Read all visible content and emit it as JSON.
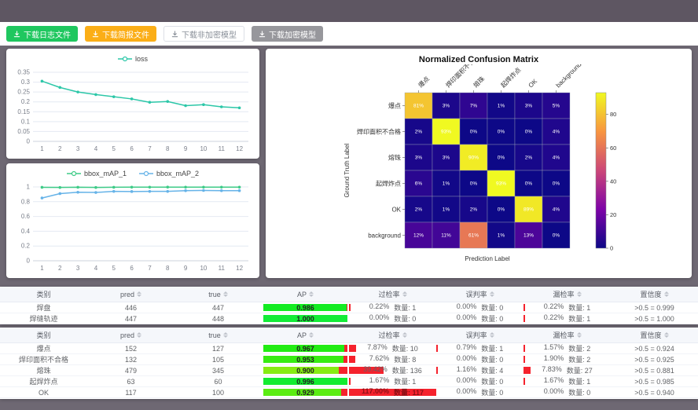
{
  "toolbar": {
    "buttons": [
      {
        "label": "下载日志文件",
        "style": "green",
        "icon": "download-icon"
      },
      {
        "label": "下载简报文件",
        "style": "amber",
        "icon": "download-icon"
      },
      {
        "label": "下载非加密模型",
        "style": "plain",
        "icon": "download-icon"
      },
      {
        "label": "下载加密模型",
        "style": "gray",
        "icon": "download-icon"
      }
    ]
  },
  "colors": {
    "bar_red": "#f5222d",
    "header_bg": "#f5f7fb",
    "page_bg": "#6e6873"
  },
  "chart_data": [
    {
      "id": "loss",
      "type": "line",
      "title": "",
      "legend_position": "top",
      "x": [
        1,
        2,
        3,
        4,
        5,
        6,
        7,
        8,
        9,
        10,
        11,
        12
      ],
      "ylim": [
        0,
        0.35
      ],
      "yticks": [
        0,
        0.05,
        0.1,
        0.15,
        0.2,
        0.25,
        0.3,
        0.35
      ],
      "series": [
        {
          "name": "loss",
          "color": "#2cc7a8",
          "values": [
            0.305,
            0.273,
            0.25,
            0.237,
            0.226,
            0.215,
            0.198,
            0.202,
            0.181,
            0.186,
            0.175,
            0.17
          ]
        }
      ]
    },
    {
      "id": "bbox_map",
      "type": "line",
      "title": "",
      "legend_position": "top",
      "x": [
        1,
        2,
        3,
        4,
        5,
        6,
        7,
        8,
        9,
        10,
        11,
        12
      ],
      "ylim": [
        0,
        1
      ],
      "yticks": [
        0,
        0.2,
        0.4,
        0.6,
        0.8,
        1
      ],
      "series": [
        {
          "name": "bbox_mAP_1",
          "color": "#3ecb87",
          "values": [
            0.995,
            0.993,
            0.996,
            0.993,
            0.996,
            0.997,
            0.997,
            0.998,
            0.997,
            0.997,
            0.997,
            0.997
          ]
        },
        {
          "name": "bbox_mAP_2",
          "color": "#66b3e8",
          "values": [
            0.85,
            0.91,
            0.928,
            0.925,
            0.94,
            0.938,
            0.94,
            0.94,
            0.95,
            0.952,
            0.95,
            0.95
          ]
        }
      ]
    },
    {
      "id": "confusion_matrix",
      "type": "heatmap",
      "title": "Normalized Confusion Matrix",
      "xlabel": "Prediction Label",
      "ylabel": "Ground Truth Label",
      "x_labels": [
        "爆点",
        "焊印面积不合格",
        "熔珠",
        "起焊炸点",
        "OK",
        "background"
      ],
      "y_labels": [
        "爆点",
        "焊印面积不合格",
        "熔珠",
        "起焊炸点",
        "OK",
        "background"
      ],
      "unit": "%",
      "values": [
        [
          81,
          3,
          7,
          1,
          3,
          5
        ],
        [
          2,
          93,
          0,
          0,
          0,
          4
        ],
        [
          3,
          3,
          90,
          0,
          2,
          4
        ],
        [
          6,
          1,
          0,
          93,
          0,
          0
        ],
        [
          2,
          1,
          2,
          0,
          89,
          4
        ],
        [
          12,
          11,
          61,
          1,
          13,
          0
        ]
      ],
      "vmin": 0,
      "vmax": 93,
      "colormap": "plasma",
      "colorbar_ticks": [
        0,
        20,
        40,
        60,
        80
      ]
    }
  ],
  "tables": [
    {
      "name": "seam-summary",
      "headers": [
        "类别",
        "pred",
        "true",
        "AP",
        "过检率",
        "误判率",
        "漏检率",
        "置信度"
      ],
      "rows": [
        {
          "category": "焊盘",
          "pred": "446",
          "true": "447",
          "ap": 0.986,
          "ap_text": "0.986",
          "overkill": {
            "pct": "0.22%",
            "count": "数量: 1",
            "value": 0.22
          },
          "misjudge": {
            "pct": "0.00%",
            "count": "数量: 0",
            "value": 0
          },
          "miss": {
            "pct": "0.22%",
            "count": "数量: 1",
            "value": 0.22
          },
          "confidence": ">0.5 = 0.999"
        },
        {
          "category": "焊缝轨迹",
          "pred": "447",
          "true": "448",
          "ap": 1.0,
          "ap_text": "1.000",
          "overkill": {
            "pct": "0.00%",
            "count": "数量: 0",
            "value": 0
          },
          "misjudge": {
            "pct": "0.00%",
            "count": "数量: 0",
            "value": 0
          },
          "miss": {
            "pct": "0.22%",
            "count": "数量: 1",
            "value": 0.22
          },
          "confidence": ">0.5 = 1.000"
        }
      ]
    },
    {
      "name": "defect-summary",
      "headers": [
        "类别",
        "pred",
        "true",
        "AP",
        "过检率",
        "误判率",
        "漏检率",
        "置信度"
      ],
      "rows": [
        {
          "category": "爆点",
          "pred": "152",
          "true": "127",
          "ap": 0.967,
          "ap_text": "0.967",
          "overkill": {
            "pct": "7.87%",
            "count": "数量: 10",
            "value": 7.87
          },
          "misjudge": {
            "pct": "0.79%",
            "count": "数量: 1",
            "value": 0.79
          },
          "miss": {
            "pct": "1.57%",
            "count": "数量: 2",
            "value": 1.57
          },
          "confidence": ">0.5 = 0.924"
        },
        {
          "category": "焊印面积不合格",
          "pred": "132",
          "true": "105",
          "ap": 0.953,
          "ap_text": "0.953",
          "overkill": {
            "pct": "7.62%",
            "count": "数量: 8",
            "value": 7.62
          },
          "misjudge": {
            "pct": "0.00%",
            "count": "数量: 0",
            "value": 0
          },
          "miss": {
            "pct": "1.90%",
            "count": "数量: 2",
            "value": 1.9
          },
          "confidence": ">0.5 = 0.925"
        },
        {
          "category": "熔珠",
          "pred": "479",
          "true": "345",
          "ap": 0.9,
          "ap_text": "0.900",
          "overkill": {
            "pct": "39.42%",
            "count": "数量: 136",
            "value": 39.42
          },
          "misjudge": {
            "pct": "1.16%",
            "count": "数量: 4",
            "value": 1.16
          },
          "miss": {
            "pct": "7.83%",
            "count": "数量: 27",
            "value": 7.83
          },
          "confidence": ">0.5 = 0.881"
        },
        {
          "category": "起焊炸点",
          "pred": "63",
          "true": "60",
          "ap": 0.996,
          "ap_text": "0.996",
          "overkill": {
            "pct": "1.67%",
            "count": "数量: 1",
            "value": 1.67
          },
          "misjudge": {
            "pct": "0.00%",
            "count": "数量: 0",
            "value": 0
          },
          "miss": {
            "pct": "1.67%",
            "count": "数量: 1",
            "value": 1.67
          },
          "confidence": ">0.5 = 0.985"
        },
        {
          "category": "OK",
          "pred": "117",
          "true": "100",
          "ap": 0.929,
          "ap_text": "0.929",
          "overkill": {
            "pct": "117.00%",
            "count": "数量: 117",
            "value": 117
          },
          "misjudge": {
            "pct": "0.00%",
            "count": "数量: 0",
            "value": 0
          },
          "miss": {
            "pct": "0.00%",
            "count": "数量: 0",
            "value": 0
          },
          "confidence": ">0.5 = 0.940"
        }
      ]
    }
  ]
}
